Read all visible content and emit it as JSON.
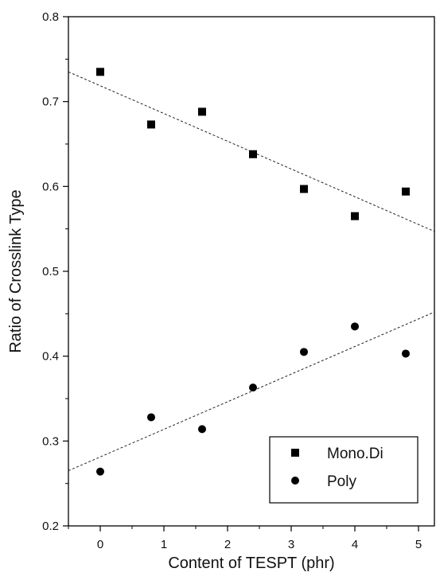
{
  "chart_data": {
    "type": "scatter",
    "xlabel": "Content of TESPT (phr)",
    "ylabel": "Ratio of Crosslink Type",
    "xlim": [
      -0.5,
      5.25
    ],
    "ylim": [
      0.2,
      0.8
    ],
    "xticks": [
      "0",
      "1",
      "2",
      "3",
      "4",
      "5"
    ],
    "yticks": [
      "0.2",
      "0.3",
      "0.4",
      "0.5",
      "0.6",
      "0.7",
      "0.8"
    ],
    "grid": false,
    "legend_position": "bottom-right",
    "series": [
      {
        "name": "Mono.Di",
        "marker": "square",
        "x": [
          0,
          0.8,
          1.6,
          2.4,
          3.2,
          4.0,
          4.8
        ],
        "y": [
          0.735,
          0.673,
          0.688,
          0.638,
          0.597,
          0.565,
          0.594
        ],
        "fit": {
          "style": "dashed",
          "x": [
            -0.5,
            5.25
          ],
          "y": [
            0.735,
            0.547
          ]
        }
      },
      {
        "name": "Poly",
        "marker": "circle",
        "x": [
          0,
          0.8,
          1.6,
          2.4,
          3.2,
          4.0,
          4.8
        ],
        "y": [
          0.264,
          0.328,
          0.314,
          0.363,
          0.405,
          0.435,
          0.403
        ],
        "fit": {
          "style": "dashed",
          "x": [
            -0.5,
            5.25
          ],
          "y": [
            0.265,
            0.452
          ]
        }
      }
    ]
  }
}
